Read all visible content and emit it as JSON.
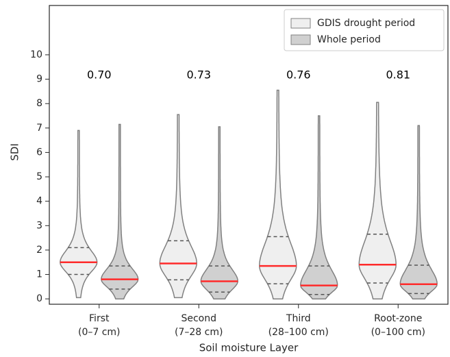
{
  "chart_data": {
    "type": "violin",
    "x_label": "Soil moisture Layer",
    "y_label": "SDI",
    "categories": [
      [
        "First",
        "(0–7 cm)"
      ],
      [
        "Second",
        "(7–28 cm)"
      ],
      [
        "Third",
        "(28–100 cm)"
      ],
      [
        "Root-zone",
        "(0–100 cm)"
      ]
    ],
    "annotations": [
      "0.70",
      "0.73",
      "0.76",
      "0.81"
    ],
    "series": [
      {
        "name": "GDIS drought period",
        "color": "#efefef",
        "min": [
          0.05,
          0.05,
          0,
          0
        ],
        "q1": [
          1.0,
          0.78,
          0.62,
          0.65
        ],
        "median": [
          1.5,
          1.45,
          1.35,
          1.4
        ],
        "q3": [
          2.1,
          2.38,
          2.55,
          2.65
        ],
        "max": [
          6.9,
          7.55,
          8.55,
          8.05
        ]
      },
      {
        "name": "Whole period",
        "color": "#d0d0d0",
        "min": [
          0,
          0,
          0,
          0
        ],
        "q1": [
          0.4,
          0.28,
          0.18,
          0.22
        ],
        "median": [
          0.8,
          0.72,
          0.55,
          0.6
        ],
        "q3": [
          1.35,
          1.35,
          1.35,
          1.38
        ],
        "max": [
          7.15,
          7.05,
          7.5,
          7.1
        ]
      }
    ],
    "median_color": "#ff2a2a",
    "ylim": [
      -0.22,
      12.02
    ],
    "yticks": [
      0,
      1,
      2,
      3,
      4,
      5,
      6,
      7,
      8,
      9,
      10
    ],
    "legend": "upper right"
  }
}
